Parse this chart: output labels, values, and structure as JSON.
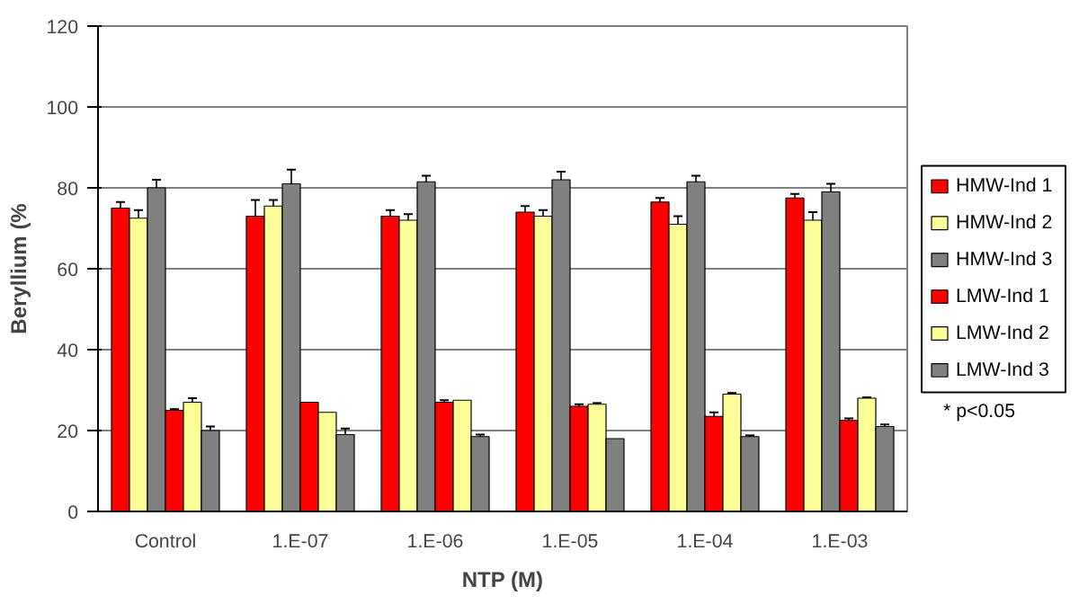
{
  "chart_data": {
    "type": "bar",
    "xlabel": "NTP (M)",
    "ylabel": "Beryllium (%",
    "categories": [
      "Control",
      "1.E-07",
      "1.E-06",
      "1.E-05",
      "1.E-04",
      "1.E-03"
    ],
    "ylim": [
      0,
      120
    ],
    "yticks": [
      0,
      20,
      40,
      60,
      80,
      100,
      120
    ],
    "grid": "y",
    "legend": "right",
    "annotations": [
      "* p<0.05"
    ],
    "series": [
      {
        "name": "HMW-Ind 1",
        "color": "#ff0000",
        "values": [
          75,
          73,
          73,
          74,
          76.5,
          77.5
        ],
        "errors": [
          1.5,
          4,
          1.5,
          1.5,
          1,
          1
        ]
      },
      {
        "name": "HMW-Ind 2",
        "color": "#ffff99",
        "values": [
          72.5,
          75.5,
          72,
          73,
          71,
          72
        ],
        "errors": [
          2,
          1.5,
          1.5,
          1.5,
          2,
          2
        ]
      },
      {
        "name": "HMW-Ind 3",
        "color": "#808080",
        "values": [
          80,
          81,
          81.5,
          82,
          81.5,
          79
        ],
        "errors": [
          2,
          3.5,
          1.5,
          2,
          1.5,
          2
        ]
      },
      {
        "name": "LMW-Ind 1",
        "color": "#ff0000",
        "values": [
          25,
          27,
          27,
          26,
          23.5,
          22.5
        ],
        "errors": [
          0.3,
          null,
          0.5,
          0.5,
          1,
          0.5
        ]
      },
      {
        "name": "LMW-Ind 2",
        "color": "#ffff99",
        "values": [
          27,
          24.5,
          27.5,
          26.5,
          29,
          28
        ],
        "errors": [
          1,
          null,
          null,
          0.3,
          0.3,
          0.2
        ]
      },
      {
        "name": "LMW-Ind 3",
        "color": "#808080",
        "values": [
          20,
          19,
          18.5,
          18,
          18.5,
          21
        ],
        "errors": [
          1,
          1.5,
          0.5,
          null,
          0.3,
          0.5
        ]
      }
    ]
  }
}
